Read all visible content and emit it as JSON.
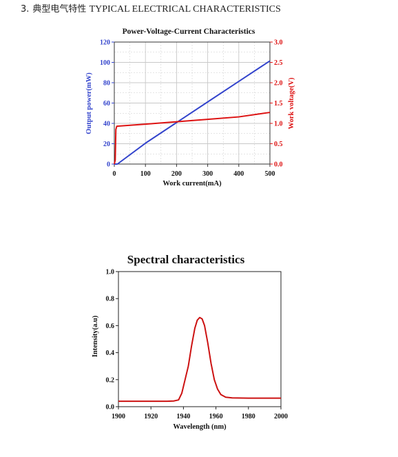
{
  "section_heading": {
    "number": "3.",
    "title_cn": "典型电气特性",
    "title_en": "TYPICAL ELECTRICAL CHARACTERISTICS"
  },
  "colors": {
    "power": "#3344cc",
    "voltage": "#dd1111",
    "spectrum": "#cc1111",
    "grid": "#c8c8c8"
  },
  "chart_data": [
    {
      "type": "line",
      "title": "Power-Voltage-Current Characteristics",
      "xlabel": "Work current(mA)",
      "ylabel": "Output power(mW)",
      "y2label": "Work voltage(V)",
      "xlim": [
        0,
        500
      ],
      "ylim": [
        0,
        120
      ],
      "y2lim": [
        0,
        3.0
      ],
      "xticks": [
        "0",
        "100",
        "200",
        "300",
        "400",
        "500"
      ],
      "yticks": [
        "0",
        "20",
        "40",
        "60",
        "80",
        "100",
        "120"
      ],
      "y2ticks": [
        "0.0",
        "0.5",
        "1.0",
        "1.5",
        "2.0",
        "2.5",
        "3.0"
      ],
      "grid": true,
      "series": [
        {
          "axis": "left",
          "points": [
            [
              0,
              0
            ],
            [
              10,
              0
            ],
            [
              100,
              20.5
            ],
            [
              200,
              40.8
            ],
            [
              300,
              61.1
            ],
            [
              400,
              81.3
            ],
            [
              500,
              101.5
            ]
          ]
        },
        {
          "axis": "right",
          "points": [
            [
              0,
              0
            ],
            [
              3,
              0.1
            ],
            [
              5,
              0.85
            ],
            [
              8,
              0.93
            ],
            [
              100,
              0.98
            ],
            [
              200,
              1.04
            ],
            [
              300,
              1.1
            ],
            [
              400,
              1.16
            ],
            [
              500,
              1.27
            ]
          ]
        }
      ]
    },
    {
      "type": "line",
      "title": "Spectral characteristics",
      "xlabel": "Wavelength (nm)",
      "ylabel": "Intensity(a.u)",
      "xlim": [
        1900,
        2000
      ],
      "ylim": [
        0,
        1.0
      ],
      "xticks": [
        "1900",
        "1920",
        "1940",
        "1960",
        "1980",
        "2000"
      ],
      "yticks": [
        "0.0",
        "0.2",
        "0.4",
        "0.6",
        "0.8",
        "1.0"
      ],
      "grid": false,
      "series": [
        {
          "points": [
            [
              1900,
              0.04
            ],
            [
              1930,
              0.04
            ],
            [
              1934,
              0.042
            ],
            [
              1937,
              0.05
            ],
            [
              1939,
              0.1
            ],
            [
              1941,
              0.2
            ],
            [
              1943,
              0.3
            ],
            [
              1945,
              0.45
            ],
            [
              1947,
              0.58
            ],
            [
              1948.5,
              0.64
            ],
            [
              1950,
              0.66
            ],
            [
              1951.5,
              0.65
            ],
            [
              1953,
              0.6
            ],
            [
              1955,
              0.47
            ],
            [
              1957,
              0.32
            ],
            [
              1959,
              0.2
            ],
            [
              1961,
              0.13
            ],
            [
              1963,
              0.09
            ],
            [
              1966,
              0.07
            ],
            [
              1970,
              0.065
            ],
            [
              1980,
              0.063
            ],
            [
              2000,
              0.063
            ]
          ]
        }
      ]
    }
  ]
}
